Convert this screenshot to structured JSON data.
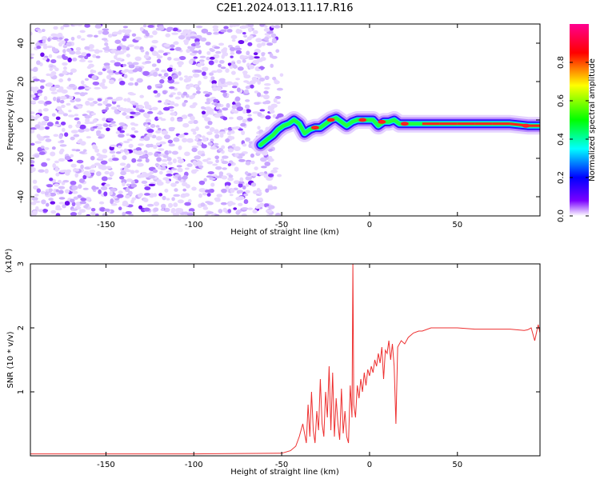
{
  "title": "C2E1.2024.013.11.17.R16",
  "chart_data": [
    {
      "type": "heatmap",
      "xlabel": "Height of straight line (km)",
      "ylabel": "Frequency (Hz)",
      "xlim": [
        -193,
        97
      ],
      "ylim": [
        -50,
        50
      ],
      "x_ticks": [
        -150,
        -100,
        -50,
        0,
        50
      ],
      "y_ticks": [
        -40,
        -20,
        0,
        20,
        40
      ],
      "noise_region": {
        "x_from": -193,
        "x_to": -48,
        "y_from": -50,
        "y_to": 50
      },
      "ridge": {
        "x": [
          -62,
          -58,
          -55,
          -52,
          -49,
          -46,
          -43,
          -40,
          -37,
          -34,
          -31,
          -28,
          -25,
          -22,
          -19,
          -16,
          -13,
          -10,
          -7,
          -4,
          -1,
          2,
          5,
          8,
          11,
          14,
          17,
          20,
          25,
          30,
          40,
          50,
          60,
          70,
          80,
          90,
          97
        ],
        "y": [
          -13,
          -10,
          -8,
          -5,
          -3,
          -2,
          0,
          -2,
          -7,
          -5,
          -4,
          -4,
          -2,
          0,
          1,
          -1,
          -3,
          -1,
          0,
          0,
          0,
          0,
          -3,
          -1,
          -1,
          0,
          -2,
          -2,
          -2,
          -2,
          -2,
          -2,
          -2,
          -2,
          -2,
          -3,
          -3
        ]
      },
      "colorbar": {
        "label": "Normalized spectral amplitude",
        "ticks": [
          "0.0",
          "0.2",
          "0.4",
          "0.6",
          "0.8"
        ],
        "range": [
          0,
          1
        ],
        "colors": [
          "#ffffff",
          "#7a00ff",
          "#0000ff",
          "#00ffff",
          "#00ff00",
          "#ffff00",
          "#ff0000",
          "#ff0090"
        ]
      }
    },
    {
      "type": "line",
      "xlabel": "Height of straight line (km)",
      "ylabel": "SNR (10 * v/v)",
      "scale_label": "(x10⁴)",
      "xlim": [
        -193,
        97
      ],
      "ylim": [
        0,
        3
      ],
      "x_ticks": [
        -150,
        -100,
        -50,
        0,
        50
      ],
      "y_ticks": [
        1,
        2,
        3
      ],
      "color": "#ee3030",
      "series": [
        {
          "x": [
            -193,
            -100,
            -50,
            -45,
            -42,
            -40,
            -38,
            -36,
            -35,
            -34,
            -33,
            -32,
            -31,
            -30,
            -29,
            -28,
            -27,
            -26,
            -25,
            -24,
            -23,
            -22,
            -21,
            -20,
            -19,
            -18,
            -17,
            -16,
            -15,
            -14,
            -13,
            -12,
            -11,
            -10,
            -9.5,
            -9,
            -8,
            -7,
            -6,
            -5,
            -4,
            -3,
            -2,
            -1,
            0,
            1,
            2,
            3,
            4,
            5,
            6,
            7,
            8,
            9,
            10,
            11,
            12,
            13,
            14,
            15,
            16,
            18,
            20,
            22,
            25,
            28,
            30,
            35,
            40,
            50,
            60,
            70,
            80,
            88,
            90,
            92,
            94,
            96,
            97
          ],
          "y": [
            0.03,
            0.03,
            0.04,
            0.08,
            0.15,
            0.3,
            0.5,
            0.2,
            0.8,
            0.3,
            1.0,
            0.4,
            0.2,
            0.7,
            0.4,
            1.2,
            0.5,
            0.3,
            1.0,
            0.6,
            1.4,
            0.4,
            1.3,
            0.3,
            0.9,
            0.5,
            0.25,
            1.05,
            0.35,
            0.7,
            0.3,
            0.2,
            1.1,
            0.6,
            3.0,
            0.8,
            0.6,
            1.1,
            0.9,
            1.2,
            1.0,
            1.3,
            1.1,
            1.35,
            1.25,
            1.4,
            1.3,
            1.5,
            1.4,
            1.6,
            1.45,
            1.7,
            1.2,
            1.65,
            1.6,
            1.8,
            1.5,
            1.75,
            1.4,
            0.5,
            1.7,
            1.8,
            1.75,
            1.85,
            1.92,
            1.95,
            1.95,
            2.0,
            2.0,
            2.0,
            1.98,
            1.98,
            1.98,
            1.96,
            1.97,
            2.0,
            1.8,
            2.05,
            1.92
          ]
        }
      ]
    }
  ]
}
